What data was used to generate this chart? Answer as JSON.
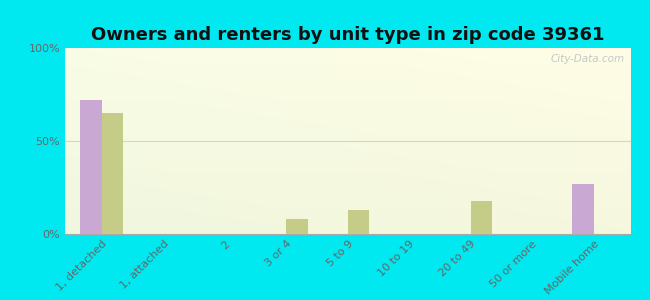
{
  "title": "Owners and renters by unit type in zip code 39361",
  "categories": [
    "1, detached",
    "1, attached",
    "2",
    "3 or 4",
    "5 to 9",
    "10 to 19",
    "20 to 49",
    "50 or more",
    "Mobile home"
  ],
  "owner_values": [
    72,
    0,
    0,
    0,
    0,
    0,
    0,
    0,
    27
  ],
  "renter_values": [
    65,
    0,
    0,
    8,
    13,
    0,
    18,
    0,
    0
  ],
  "owner_color": "#c9a8d4",
  "renter_color": "#c5cc88",
  "background_color": "#00e8f0",
  "yticks": [
    0,
    50,
    100
  ],
  "ylim": [
    0,
    100
  ],
  "bar_width": 0.35,
  "title_fontsize": 13,
  "legend_fontsize": 9,
  "tick_fontsize": 8,
  "watermark": "City-Data.com"
}
